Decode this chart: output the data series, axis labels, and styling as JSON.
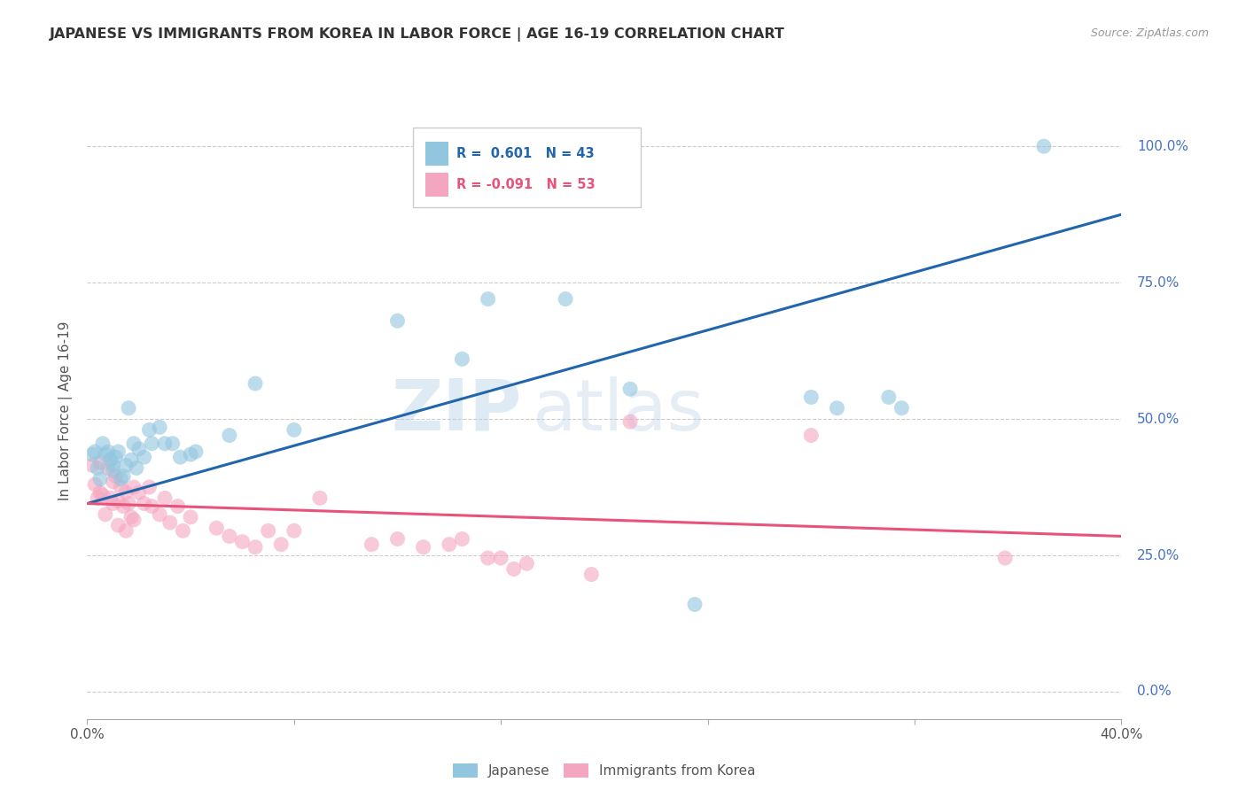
{
  "title": "JAPANESE VS IMMIGRANTS FROM KOREA IN LABOR FORCE | AGE 16-19 CORRELATION CHART",
  "source": "Source: ZipAtlas.com",
  "ylabel": "In Labor Force | Age 16-19",
  "ytick_labels": [
    "0.0%",
    "25.0%",
    "50.0%",
    "75.0%",
    "100.0%"
  ],
  "ytick_values": [
    0.0,
    0.25,
    0.5,
    0.75,
    1.0
  ],
  "xtick_labels": [
    "0.0%",
    "",
    "",
    "",
    "",
    "40.0%"
  ],
  "xtick_values": [
    0.0,
    0.08,
    0.16,
    0.24,
    0.32,
    0.4
  ],
  "xmin": 0.0,
  "xmax": 0.4,
  "ymin": -0.05,
  "ymax": 1.08,
  "watermark": "ZIPatlas",
  "legend_r_blue": "R =  0.601",
  "legend_n_blue": "N = 43",
  "legend_r_pink": "R = -0.091",
  "legend_n_pink": "N = 53",
  "blue_color": "#92c5de",
  "pink_color": "#f4a6c0",
  "blue_line_color": "#2166ac",
  "pink_line_color": "#e8537a",
  "blue_scatter": [
    [
      0.002,
      0.435
    ],
    [
      0.003,
      0.44
    ],
    [
      0.004,
      0.41
    ],
    [
      0.005,
      0.39
    ],
    [
      0.006,
      0.455
    ],
    [
      0.007,
      0.435
    ],
    [
      0.008,
      0.44
    ],
    [
      0.009,
      0.425
    ],
    [
      0.01,
      0.415
    ],
    [
      0.01,
      0.405
    ],
    [
      0.011,
      0.43
    ],
    [
      0.012,
      0.44
    ],
    [
      0.013,
      0.39
    ],
    [
      0.014,
      0.395
    ],
    [
      0.015,
      0.415
    ],
    [
      0.016,
      0.52
    ],
    [
      0.017,
      0.425
    ],
    [
      0.018,
      0.455
    ],
    [
      0.019,
      0.41
    ],
    [
      0.02,
      0.445
    ],
    [
      0.022,
      0.43
    ],
    [
      0.024,
      0.48
    ],
    [
      0.025,
      0.455
    ],
    [
      0.028,
      0.485
    ],
    [
      0.03,
      0.455
    ],
    [
      0.033,
      0.455
    ],
    [
      0.036,
      0.43
    ],
    [
      0.04,
      0.435
    ],
    [
      0.042,
      0.44
    ],
    [
      0.055,
      0.47
    ],
    [
      0.065,
      0.565
    ],
    [
      0.08,
      0.48
    ],
    [
      0.12,
      0.68
    ],
    [
      0.145,
      0.61
    ],
    [
      0.155,
      0.72
    ],
    [
      0.185,
      0.72
    ],
    [
      0.21,
      0.555
    ],
    [
      0.235,
      0.16
    ],
    [
      0.28,
      0.54
    ],
    [
      0.315,
      0.52
    ],
    [
      0.37,
      1.0
    ],
    [
      0.29,
      0.52
    ],
    [
      0.31,
      0.54
    ]
  ],
  "pink_scatter": [
    [
      0.002,
      0.415
    ],
    [
      0.003,
      0.38
    ],
    [
      0.004,
      0.355
    ],
    [
      0.005,
      0.42
    ],
    [
      0.005,
      0.365
    ],
    [
      0.006,
      0.36
    ],
    [
      0.007,
      0.325
    ],
    [
      0.008,
      0.41
    ],
    [
      0.009,
      0.355
    ],
    [
      0.01,
      0.385
    ],
    [
      0.01,
      0.345
    ],
    [
      0.011,
      0.395
    ],
    [
      0.012,
      0.35
    ],
    [
      0.012,
      0.305
    ],
    [
      0.013,
      0.375
    ],
    [
      0.014,
      0.34
    ],
    [
      0.015,
      0.365
    ],
    [
      0.015,
      0.295
    ],
    [
      0.016,
      0.345
    ],
    [
      0.017,
      0.32
    ],
    [
      0.018,
      0.375
    ],
    [
      0.018,
      0.315
    ],
    [
      0.02,
      0.365
    ],
    [
      0.022,
      0.345
    ],
    [
      0.024,
      0.375
    ],
    [
      0.025,
      0.34
    ],
    [
      0.028,
      0.325
    ],
    [
      0.03,
      0.355
    ],
    [
      0.032,
      0.31
    ],
    [
      0.035,
      0.34
    ],
    [
      0.037,
      0.295
    ],
    [
      0.04,
      0.32
    ],
    [
      0.05,
      0.3
    ],
    [
      0.055,
      0.285
    ],
    [
      0.06,
      0.275
    ],
    [
      0.065,
      0.265
    ],
    [
      0.07,
      0.295
    ],
    [
      0.075,
      0.27
    ],
    [
      0.08,
      0.295
    ],
    [
      0.09,
      0.355
    ],
    [
      0.11,
      0.27
    ],
    [
      0.12,
      0.28
    ],
    [
      0.13,
      0.265
    ],
    [
      0.14,
      0.27
    ],
    [
      0.145,
      0.28
    ],
    [
      0.155,
      0.245
    ],
    [
      0.16,
      0.245
    ],
    [
      0.165,
      0.225
    ],
    [
      0.17,
      0.235
    ],
    [
      0.195,
      0.215
    ],
    [
      0.21,
      0.495
    ],
    [
      0.28,
      0.47
    ],
    [
      0.355,
      0.245
    ]
  ],
  "blue_trendline": [
    [
      0.0,
      0.345
    ],
    [
      0.4,
      0.875
    ]
  ],
  "pink_trendline": [
    [
      0.0,
      0.345
    ],
    [
      0.4,
      0.285
    ]
  ]
}
